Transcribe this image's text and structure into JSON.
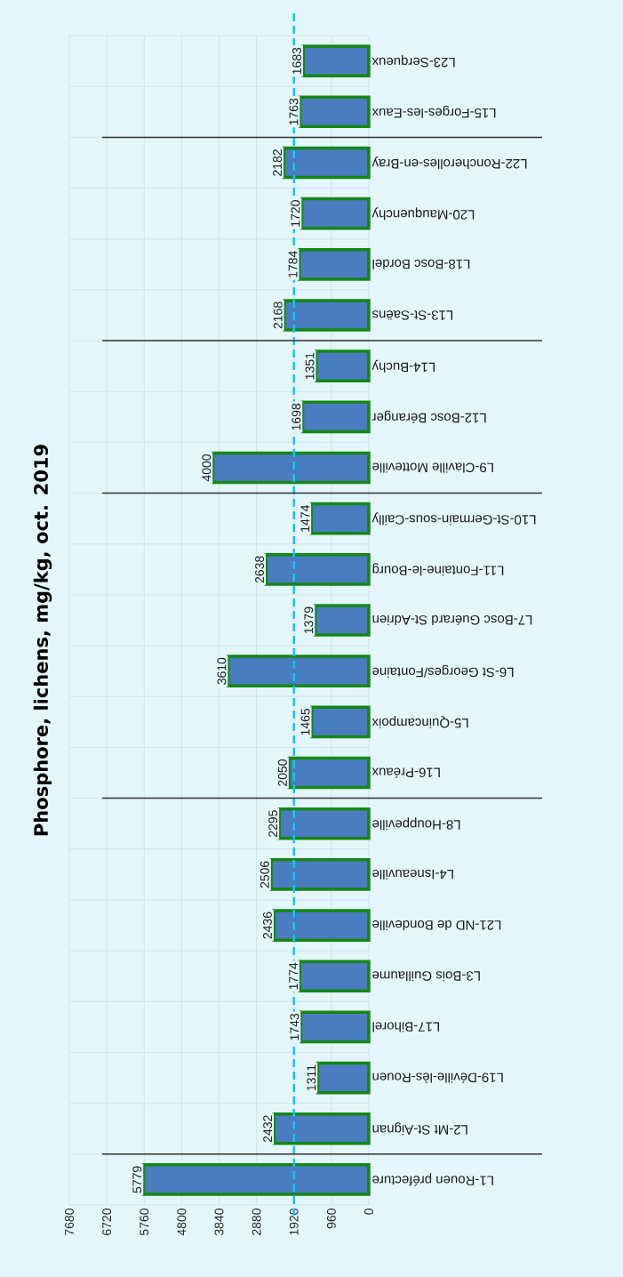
{
  "chart_data": {
    "type": "bar",
    "orientation": "horizontal",
    "title": "Phosphore, lichens, mg/kg, oct. 2019",
    "categories": [
      "L23-Serqueux",
      "L15-Forges-les-Eaux",
      "L22-Roncherolles-en-Bray",
      "L20-Mauquenchy",
      "L18-Bosc Bordel",
      "L13-St-Saëns",
      "L14-Buchy",
      "L12-Bosc Béranger",
      "L9-Claville Motteville",
      "L10-St-Germain-sous-Cailly",
      "L11-Fontaine-le-Bourg",
      "L7-Bosc Guérard St-Adrien",
      "L6-St Georges/Fontaine",
      "L5-Quincampoix",
      "L16-Préaux",
      "L8-Houppeville",
      "L4-Isneauville",
      "L21-ND de Bondeville",
      "L3-Bois Guillaume",
      "L17-Bihorel",
      "L19-Déville-lès-Rouen",
      "L2-Mt St-Aignan",
      "L1-Rouen préfecture"
    ],
    "values": [
      1683,
      1763,
      2182,
      1720,
      1784,
      2168,
      1351,
      1698,
      4000,
      1474,
      2638,
      1379,
      3610,
      1465,
      2050,
      2295,
      2506,
      2436,
      1774,
      1743,
      1311,
      2432,
      5779
    ],
    "color": "#4a7cc0",
    "xlim": [
      7680,
      0
    ],
    "xticks": [
      0,
      960,
      1920,
      2880,
      3840,
      4800,
      5760,
      6720,
      7680
    ],
    "data_labels": true,
    "grid": true,
    "ref_lines": [
      {
        "axis": "x",
        "value": 1920,
        "color": "#1ec0f0",
        "line_style": "dashed"
      }
    ]
  }
}
